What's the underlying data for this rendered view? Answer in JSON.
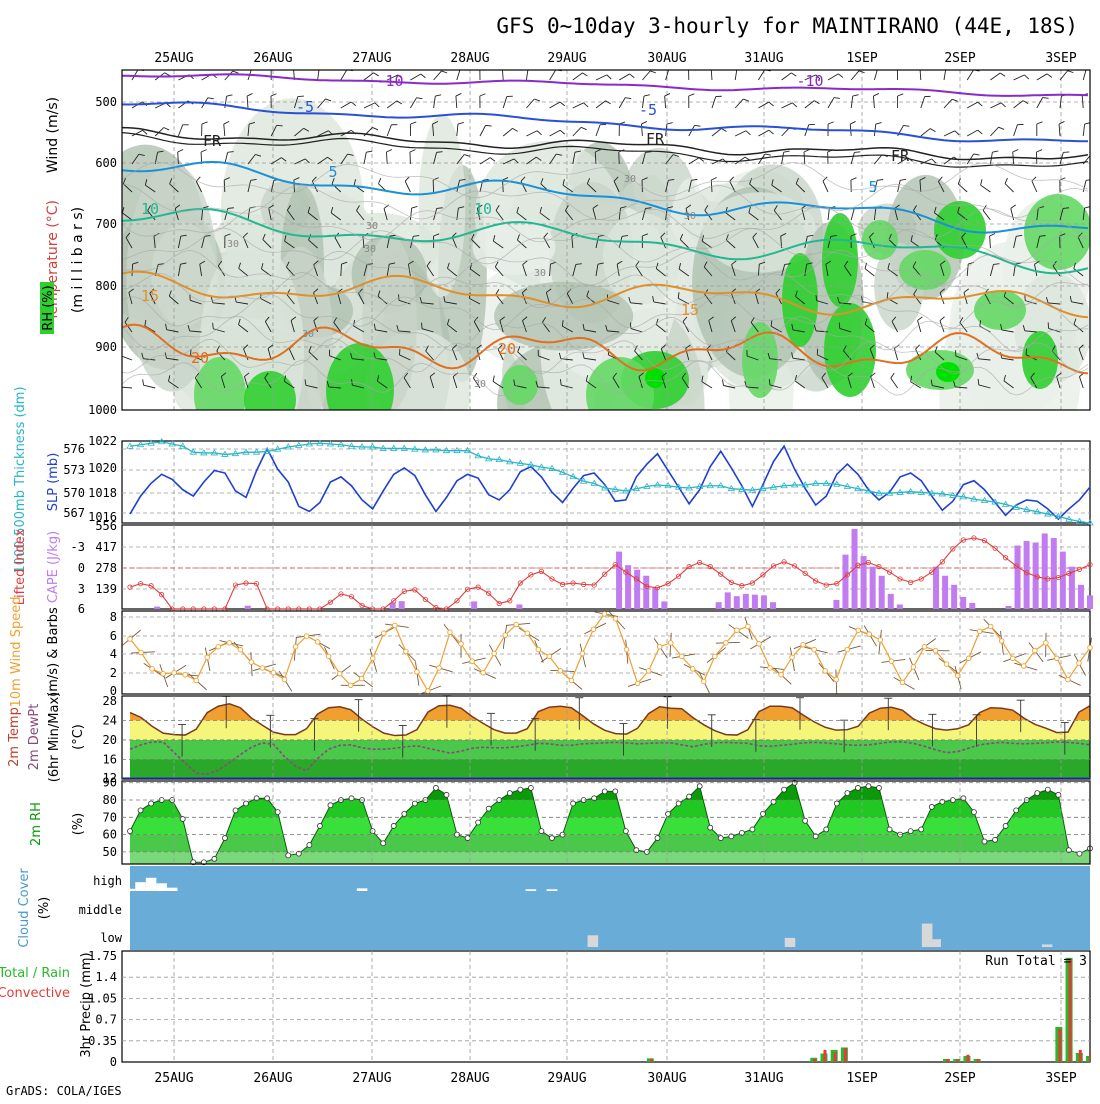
{
  "title": "GFS 0~10day 3-hourly for MAINTIRANO (44E, 18S)",
  "footer": "GrADS: COLA/IGES",
  "dates": [
    "25AUG",
    "26AUG",
    "27AUG",
    "28AUG",
    "29AUG",
    "30AUG",
    "31AUG",
    "1SEP",
    "2SEP",
    "3SEP"
  ],
  "colors": {
    "frame": "#000000",
    "grid": "#9a9a9a",
    "slp": "#1f3fcf",
    "thickness": "#2ab4c8",
    "lifted": "#e03c3c",
    "cape": "#c07cf0",
    "wind10": "#f0a030",
    "temp_fill": "#f0a030",
    "dew": "#8a4a7a",
    "rh_green": "#0a9a0a",
    "cloud_bg": "#6aacd8",
    "cloud_fill": "#d8d8d8",
    "precip_total": "#2ab82a",
    "precip_conv": "#e03c3c"
  },
  "panels": {
    "upper": {
      "label_wind": "Wind (m/s)",
      "label_temp": "Temperature (°C)",
      "label_rh": "RH (%)",
      "label_unit": "(m i l l i b a r s)",
      "ticks": [
        "500",
        "600",
        "700",
        "800",
        "900",
        "1000"
      ],
      "contour_labels": [
        "-10",
        "-10",
        "-5",
        "-5",
        "FR",
        "FR",
        "FR",
        "5",
        "5",
        "10",
        "10",
        "15",
        "15",
        "20",
        "20",
        "30",
        "30",
        "30",
        "30",
        "30",
        "30",
        "30",
        "30"
      ]
    },
    "slp": {
      "label_thick": "1000-500mb Thickness (dm)",
      "label_slp": "SLP (mb)",
      "left_ticks": [
        "576",
        "573",
        "570",
        "567"
      ],
      "right_ticks": [
        "1022",
        "1020",
        "1018",
        "1016"
      ]
    },
    "cape": {
      "label_li": "Lifted Index",
      "label_cape": "CAPE (J/kg)",
      "left_ticks": [
        "-3",
        "0",
        "3",
        "6"
      ],
      "right_ticks": [
        "556",
        "417",
        "278",
        "139"
      ]
    },
    "wind10": {
      "label": "10m Wind Speed",
      "label_b": "(m/s) & Barbs",
      "ticks": [
        "8",
        "6",
        "4",
        "2",
        "0"
      ]
    },
    "temp": {
      "label_a": "2m Temp",
      "label_b": "2m DewPt",
      "label_c": "(6hr Min/Max)",
      "label_unit": "(°C)",
      "ticks": [
        "28",
        "24",
        "20",
        "16",
        "12"
      ]
    },
    "rh": {
      "label": "2m RH",
      "label_unit": "(%)",
      "ticks": [
        "90",
        "80",
        "70",
        "60",
        "50"
      ]
    },
    "cloud": {
      "label": "Cloud Cover",
      "label_unit": "(%)",
      "levels": [
        "high",
        "middle",
        "low"
      ]
    },
    "precip": {
      "label_total": "Total / Rain",
      "label_conv": "Convective",
      "label_axis": "3hr Precip (mm)",
      "ticks": [
        "1.75",
        "1.4",
        "1.05",
        "0.7",
        "0.35",
        "0"
      ],
      "run_total": "Run Total = 3"
    }
  },
  "chart_data": [
    {
      "type": "line",
      "name": "slp",
      "x_unit": "3-hourly step",
      "ylabel": "SLP (mb)",
      "ylim": [
        1015.8,
        1022.2
      ],
      "values": [
        1016.5,
        1017.9,
        1018.9,
        1019.6,
        1019.2,
        1018.4,
        1017.9,
        1019.0,
        1019.9,
        1019.7,
        1018.3,
        1017.8,
        1019.9,
        1021.6,
        1020.0,
        1019.0,
        1017.1,
        1016.7,
        1017.4,
        1019.0,
        1019.4,
        1018.7,
        1017.6,
        1016.9,
        1018.3,
        1019.6,
        1020.1,
        1019.5,
        1018.0,
        1016.7,
        1017.8,
        1019.1,
        1019.6,
        1019.3,
        1018.0,
        1017.6,
        1018.4,
        1019.8,
        1020.2,
        1019.4,
        1018.2,
        1017.4,
        1018.5,
        1019.5,
        1019.7,
        1018.8,
        1017.5,
        1017.6,
        1019.4,
        1020.4,
        1021.2,
        1019.9,
        1018.6,
        1017.3,
        1018.4,
        1020.2,
        1021.4,
        1020.1,
        1018.7,
        1017.1,
        1018.8,
        1020.6,
        1021.8,
        1020.0,
        1018.5,
        1017.2,
        1017.9,
        1019.6,
        1020.4,
        1019.6,
        1018.4,
        1017.6,
        1018.2,
        1019.4,
        1019.7,
        1019.1,
        1017.9,
        1016.8,
        1017.5,
        1018.8,
        1019.1,
        1018.4,
        1017.4,
        1016.4,
        1017.2,
        1017.6,
        1017.5,
        1016.9,
        1016.1,
        1016.9,
        1017.6,
        1018.6
      ]
    },
    {
      "type": "line",
      "name": "thickness",
      "ylabel": "1000-500mb Thickness (dm)",
      "ylim": [
        566,
        577
      ],
      "values": [
        576.3,
        576.5,
        576.7,
        576.9,
        576.6,
        576.3,
        575.5,
        575.4,
        575.4,
        575.2,
        575.3,
        575.5,
        575.5,
        575.6,
        575.9,
        576.2,
        576.4,
        576.6,
        576.7,
        576.6,
        576.5,
        576.3,
        576.2,
        576.2,
        576.0,
        576.0,
        576.0,
        575.9,
        575.8,
        575.8,
        575.7,
        575.7,
        575.7,
        575.0,
        574.6,
        574.5,
        574.2,
        574.0,
        573.8,
        573.5,
        573.3,
        572.8,
        572.2,
        571.6,
        571.3,
        570.7,
        570.5,
        570.3,
        570.6,
        570.9,
        571.1,
        571.0,
        570.8,
        570.7,
        570.9,
        571.0,
        571.0,
        570.6,
        570.5,
        570.4,
        570.6,
        570.8,
        571.0,
        571.1,
        571.1,
        571.3,
        571.3,
        571.2,
        570.9,
        570.6,
        570.3,
        570.0,
        570.0,
        570.1,
        570.2,
        570.1,
        570.0,
        569.9,
        569.7,
        569.5,
        569.2,
        569.0,
        568.8,
        568.5,
        568.1,
        567.8,
        567.5,
        567.2,
        566.9,
        566.5,
        566.2,
        566.0
      ]
    },
    {
      "type": "line",
      "name": "lifted_index",
      "ylabel": "Lifted Index",
      "ylim": [
        6,
        -6
      ],
      "values": [
        2.8,
        2.3,
        2.6,
        3.9,
        6.0,
        6.0,
        6.0,
        6.0,
        6.0,
        6.0,
        2.5,
        2.2,
        2.3,
        6.0,
        6.0,
        6.0,
        6.0,
        6.0,
        6.0,
        5.0,
        3.8,
        4.2,
        5.5,
        6.0,
        6.0,
        4.8,
        3.4,
        3.2,
        4.6,
        5.8,
        6.0,
        4.8,
        3.1,
        2.8,
        3.7,
        5.2,
        4.8,
        2.2,
        1.0,
        0.5,
        1.6,
        2.4,
        2.2,
        2.4,
        2.5,
        0.9,
        -0.5,
        0.6,
        1.6,
        2.7,
        2.9,
        2.3,
        1.2,
        -0.2,
        -0.8,
        -0.2,
        0.9,
        2.1,
        2.6,
        2.2,
        1.0,
        -0.3,
        -0.9,
        -0.3,
        0.8,
        1.9,
        2.5,
        2.3,
        1.0,
        -0.4,
        -0.8,
        -0.2,
        0.6,
        1.6,
        2.1,
        1.6,
        0.6,
        -0.9,
        -2.8,
        -4.1,
        -4.4,
        -4.0,
        -2.9,
        -1.5,
        -0.3,
        0.7,
        1.3,
        1.6,
        1.4,
        0.8,
        0.2,
        -0.5
      ]
    },
    {
      "type": "bar",
      "name": "cape",
      "ylabel": "CAPE (J/kg)",
      "ylim": [
        0,
        556
      ],
      "values": [
        0,
        0,
        0,
        16,
        0,
        0,
        0,
        0,
        0,
        0,
        0,
        0,
        0,
        22,
        0,
        0,
        0,
        0,
        0,
        0,
        0,
        0,
        0,
        0,
        0,
        0,
        0,
        0,
        0,
        41,
        52,
        0,
        0,
        0,
        0,
        0,
        0,
        0,
        50,
        0,
        0,
        0,
        0,
        30,
        0,
        0,
        0,
        0,
        0,
        0,
        0,
        0,
        0,
        0,
        380,
        290,
        260,
        220,
        140,
        50,
        0,
        0,
        0,
        0,
        0,
        45,
        110,
        85,
        100,
        95,
        90,
        45,
        0,
        0,
        0,
        0,
        0,
        0,
        60,
        360,
        530,
        350,
        280,
        220,
        100,
        30,
        0,
        0,
        0,
        280,
        220,
        160,
        80,
        40,
        0,
        0,
        0,
        20,
        420,
        450,
        440,
        500,
        470,
        380,
        280,
        160,
        90
      ]
    },
    {
      "type": "line",
      "name": "wind10_speed",
      "ylabel": "(m/s)",
      "ylim": [
        0,
        8.6
      ],
      "values": [
        5.7,
        4.3,
        2.6,
        2.1,
        2.2,
        2.0,
        1.4,
        3.8,
        4.9,
        5.3,
        4.6,
        3.3,
        2.7,
        2.2,
        1.5,
        4.9,
        6.0,
        5.4,
        3.9,
        2.1,
        0.9,
        1.6,
        3.7,
        6.3,
        7.1,
        4.4,
        2.3,
        0.1,
        2.7,
        6.4,
        5.2,
        3.4,
        2.2,
        4.2,
        6.1,
        7.2,
        6.3,
        4.6,
        3.9,
        2.4,
        1.4,
        4.2,
        6.7,
        8.3,
        7.8,
        4.6,
        1.1,
        2.4,
        4.9,
        5.3,
        3.9,
        2.6,
        1.3,
        3.9,
        5.3,
        6.6,
        7.0,
        5.2,
        2.7,
        2.0,
        3.8,
        5.1,
        4.6,
        2.4,
        1.5,
        4.6,
        6.6,
        6.2,
        5.6,
        3.4,
        1.2,
        2.8,
        4.9,
        4.5,
        3.1,
        1.9,
        3.7,
        6.5,
        7.0,
        5.5,
        3.7,
        2.9,
        4.5,
        5.3,
        3.7,
        1.5,
        3.2,
        4.8
      ]
    },
    {
      "type": "area",
      "name": "temp_2m",
      "ylabel": "(°C)",
      "ylim": [
        12,
        29
      ],
      "values": [
        25.6,
        24.6,
        22.8,
        21.4,
        21.1,
        21.0,
        22.2,
        25.6,
        26.9,
        27.4,
        26.6,
        24.5,
        23.0,
        21.6,
        21.1,
        21.1,
        22.3,
        25.3,
        26.6,
        26.8,
        26.2,
        24.3,
        22.7,
        21.4,
        20.9,
        21.0,
        22.1,
        25.7,
        27.0,
        27.1,
        26.5,
        24.8,
        23.4,
        22.1,
        21.4,
        21.4,
        22.3,
        25.8,
        26.7,
        26.9,
        26.6,
        25.0,
        23.3,
        22.0,
        21.3,
        21.2,
        22.4,
        25.4,
        26.8,
        26.5,
        26.4,
        24.6,
        23.1,
        21.9,
        21.1,
        21.0,
        22.1,
        25.8,
        26.9,
        26.9,
        26.6,
        25.1,
        23.7,
        22.6,
        22.0,
        22.1,
        22.8,
        25.5,
        26.5,
        26.7,
        26.1,
        24.3,
        23.2,
        22.3,
        22.0,
        22.3,
        23.1,
        25.6,
        26.6,
        26.5,
        26.1,
        24.5,
        23.2,
        22.4,
        21.5,
        21.6,
        25.7,
        27.0
      ]
    },
    {
      "type": "line",
      "name": "dewpt_2m",
      "ylabel": "(°C)",
      "ylim": [
        12,
        29
      ],
      "values": [
        18.1,
        19.0,
        19.6,
        19.6,
        17.4,
        15.3,
        13.2,
        13.0,
        13.8,
        15.3,
        17.0,
        18.5,
        19.4,
        19.1,
        16.6,
        14.6,
        13.7,
        16.2,
        18.1,
        18.9,
        19.0,
        18.4,
        18.1,
        18.1,
        18.3,
        18.6,
        18.8,
        18.3,
        17.8,
        17.3,
        17.7,
        18.3,
        18.5,
        18.4,
        18.4,
        18.6,
        18.9,
        19.3,
        19.2,
        18.9,
        18.9,
        19.2,
        19.3,
        19.4,
        19.5,
        19.4,
        19.2,
        19.3,
        19.4,
        19.4,
        19.0,
        18.6,
        19.1,
        19.4,
        19.5,
        19.4,
        19.3,
        18.8,
        18.7,
        18.9,
        19.1,
        19.4,
        19.5,
        19.4,
        19.2,
        19.0,
        18.9,
        19.0,
        19.3,
        19.6,
        19.6,
        19.3,
        18.7,
        18.0,
        17.4,
        17.6,
        18.3,
        19.0,
        19.3,
        19.5,
        19.3,
        19.2,
        19.3,
        19.4,
        19.6,
        19.5,
        19.3,
        19.0
      ]
    },
    {
      "type": "area",
      "name": "rh_2m",
      "ylabel": "(%)",
      "ylim": [
        43,
        91
      ],
      "values": [
        62,
        74,
        78,
        80,
        80,
        69,
        44,
        44,
        46,
        58,
        74,
        78,
        81,
        81,
        73,
        48,
        49,
        54,
        65,
        77,
        80,
        81,
        80,
        62,
        55,
        65,
        72,
        78,
        80,
        87,
        83,
        60,
        58,
        67,
        75,
        80,
        84,
        86,
        87,
        62,
        58,
        60,
        78,
        80,
        81,
        85,
        85,
        62,
        51,
        50,
        58,
        72,
        78,
        82,
        88,
        64,
        58,
        59,
        61,
        63,
        72,
        79,
        86,
        90,
        68,
        59,
        63,
        78,
        84,
        87,
        88,
        87,
        63,
        60,
        62,
        63,
        76,
        79,
        80,
        81,
        73,
        56,
        57,
        65,
        74,
        80,
        84,
        86,
        83,
        51,
        49,
        52
      ]
    },
    {
      "type": "bar",
      "name": "cloud_high",
      "ylabel": "(%)",
      "ylim": [
        0,
        100
      ],
      "values": [
        10,
        40,
        60,
        35,
        15,
        0,
        0,
        0,
        0,
        0,
        0,
        0,
        0,
        0,
        0,
        0,
        0,
        0,
        0,
        0,
        0,
        0,
        12,
        0,
        0,
        0,
        0,
        0,
        0,
        0,
        0,
        0,
        0,
        0,
        0,
        0,
        0,
        0,
        8,
        0,
        8,
        0,
        0,
        0,
        0,
        0,
        0,
        0,
        0,
        0,
        0,
        0,
        0,
        0,
        0,
        0,
        0,
        0,
        0,
        0,
        0,
        0,
        0,
        0,
        0,
        0,
        0,
        0,
        0,
        0,
        0,
        0,
        0,
        0,
        0,
        0,
        0,
        0,
        0,
        0,
        0,
        0,
        0,
        0,
        0,
        0,
        0,
        0,
        0,
        0,
        0,
        0
      ]
    },
    {
      "type": "bar",
      "name": "cloud_low",
      "ylabel": "(%)",
      "ylim": [
        0,
        100
      ],
      "values": [
        0,
        0,
        0,
        0,
        0,
        0,
        0,
        0,
        0,
        0,
        0,
        0,
        0,
        0,
        0,
        0,
        0,
        0,
        0,
        0,
        0,
        0,
        0,
        0,
        0,
        0,
        0,
        0,
        0,
        0,
        0,
        0,
        0,
        0,
        0,
        0,
        0,
        0,
        0,
        0,
        0,
        0,
        0,
        0,
        0,
        0,
        0,
        0,
        0,
        0,
        0,
        0,
        0,
        0,
        45,
        0,
        0,
        0,
        0,
        0,
        0,
        0,
        0,
        0,
        0,
        0,
        0,
        0,
        0,
        0,
        0,
        0,
        0,
        0,
        0,
        0,
        0,
        35,
        0,
        0,
        0,
        0,
        0,
        0,
        0,
        0,
        0,
        0,
        0,
        0,
        0,
        0,
        0,
        90,
        30,
        0,
        0,
        0,
        0,
        0,
        0,
        0,
        0,
        0,
        0,
        0,
        0,
        10,
        0,
        0,
        0,
        0,
        0
      ]
    },
    {
      "type": "bar",
      "name": "precip_total",
      "ylabel": "3hr Precip (mm)",
      "ylim": [
        0,
        1.75
      ],
      "values": [
        0,
        0,
        0,
        0,
        0,
        0,
        0,
        0,
        0,
        0,
        0,
        0,
        0,
        0,
        0,
        0,
        0,
        0,
        0,
        0,
        0,
        0,
        0,
        0,
        0,
        0,
        0,
        0,
        0,
        0,
        0,
        0,
        0,
        0,
        0,
        0,
        0,
        0,
        0,
        0,
        0,
        0,
        0,
        0,
        0,
        0,
        0,
        0,
        0,
        0,
        0,
        0.06,
        0,
        0,
        0,
        0,
        0,
        0,
        0,
        0,
        0,
        0,
        0,
        0,
        0,
        0,
        0,
        0.07,
        0.14,
        0.2,
        0.24,
        0,
        0,
        0,
        0,
        0,
        0,
        0,
        0,
        0,
        0.05,
        0.05,
        0.1,
        0.05,
        0,
        0,
        0,
        0,
        0,
        0,
        0,
        0.58,
        1.72,
        0.15,
        0.1
      ]
    },
    {
      "type": "bar",
      "name": "precip_convective",
      "ylabel": "3hr Precip (mm)",
      "ylim": [
        0,
        1.75
      ],
      "values": [
        0,
        0,
        0,
        0,
        0,
        0,
        0,
        0,
        0,
        0,
        0,
        0,
        0,
        0,
        0,
        0,
        0,
        0,
        0,
        0,
        0,
        0,
        0,
        0,
        0,
        0,
        0,
        0,
        0,
        0,
        0,
        0,
        0,
        0,
        0,
        0,
        0,
        0,
        0,
        0,
        0,
        0,
        0,
        0,
        0,
        0,
        0,
        0,
        0,
        0,
        0,
        0.05,
        0,
        0,
        0,
        0,
        0,
        0,
        0,
        0,
        0,
        0,
        0,
        0,
        0,
        0,
        0,
        0.05,
        0.2,
        0.16,
        0.23,
        0,
        0,
        0,
        0,
        0,
        0,
        0,
        0,
        0,
        0.05,
        0.04,
        0.12,
        0.05,
        0,
        0,
        0,
        0,
        0,
        0,
        0,
        0.55,
        1.7,
        0.2,
        0.15
      ]
    }
  ]
}
